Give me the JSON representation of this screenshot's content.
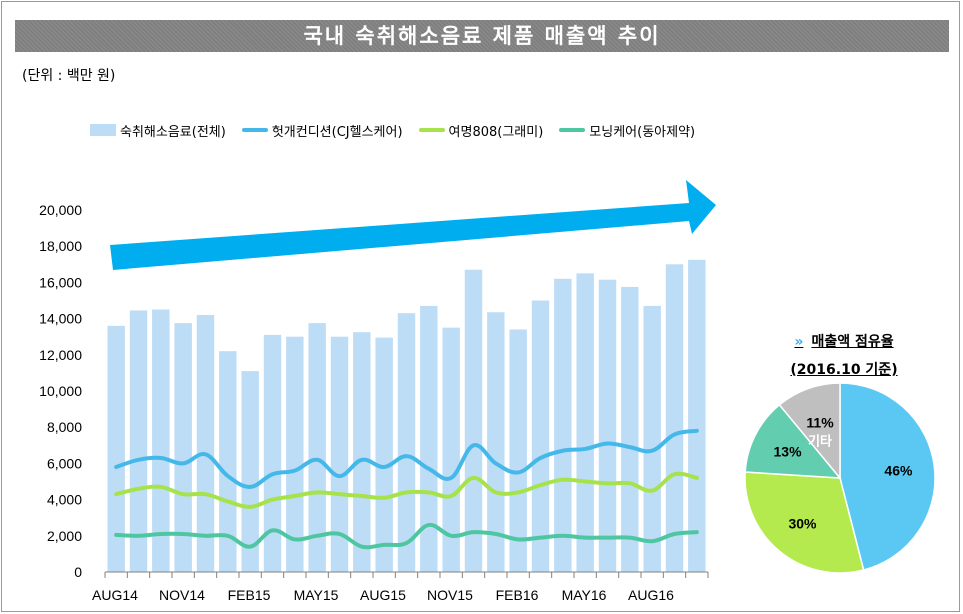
{
  "title": "국내 숙취해소음료 제품 매출액 추이",
  "unit": "(단위 : 백만 원)",
  "legend": [
    {
      "label": "숙취해소음료(전체)",
      "color": "#bddcf5",
      "kind": "bar"
    },
    {
      "label": "헛개컨디션(CJ헬스케어)",
      "color": "#45b8ea",
      "kind": "line"
    },
    {
      "label": "여명808(그래미)",
      "color": "#a6e24a",
      "kind": "line"
    },
    {
      "label": "모닝케어(동아제약)",
      "color": "#4fc6a2",
      "kind": "line"
    }
  ],
  "chart_data": [
    {
      "type": "bar",
      "x_tick_labels": [
        "AUG14",
        "NOV14",
        "FEB15",
        "MAY15",
        "AUG15",
        "NOV15",
        "FEB16",
        "MAY16",
        "AUG16"
      ],
      "y_tick_labels": [
        "0",
        "2,000",
        "4,000",
        "6,000",
        "8,000",
        "10,000",
        "12,000",
        "14,000",
        "16,000",
        "18,000",
        "20,000"
      ],
      "ylim": [
        0,
        20000
      ],
      "n_periods": 27,
      "series": [
        {
          "name": "숙취해소음료(전체)",
          "type": "bar",
          "color": "#bddcf5",
          "values": [
            13600,
            14450,
            14500,
            13750,
            14200,
            12200,
            11100,
            13100,
            13000,
            13750,
            13000,
            13250,
            12950,
            14300,
            14700,
            13500,
            16700,
            14350,
            13400,
            15000,
            16200,
            16500,
            16150,
            15750,
            14700,
            17000,
            17250
          ]
        },
        {
          "name": "헛개컨디션(CJ헬스케어)",
          "type": "line",
          "color": "#45b8ea",
          "values": [
            5800,
            6200,
            6300,
            6000,
            6500,
            5300,
            4700,
            5400,
            5600,
            6200,
            5300,
            6200,
            5800,
            6400,
            5700,
            5200,
            7000,
            6000,
            5500,
            6300,
            6700,
            6800,
            7100,
            6900,
            6700,
            7600,
            7800
          ]
        },
        {
          "name": "여명808(그래미)",
          "type": "line",
          "color": "#a6e24a",
          "values": [
            4300,
            4600,
            4700,
            4300,
            4300,
            3900,
            3600,
            4000,
            4200,
            4400,
            4300,
            4200,
            4100,
            4400,
            4400,
            4200,
            5200,
            4400,
            4400,
            4800,
            5100,
            5000,
            4900,
            4900,
            4500,
            5400,
            5200
          ]
        },
        {
          "name": "모닝케어(동아제약)",
          "type": "line",
          "color": "#4fc6a2",
          "values": [
            2050,
            2000,
            2100,
            2100,
            2000,
            2000,
            1400,
            2300,
            1800,
            2000,
            2100,
            1400,
            1500,
            1600,
            2600,
            2000,
            2200,
            2100,
            1800,
            1900,
            2000,
            1900,
            1900,
            1900,
            1700,
            2100,
            2200
          ]
        }
      ]
    },
    {
      "type": "pie",
      "title": "매출액 점유율",
      "subtitle": "(2016.10 기준)",
      "title_marker": "»",
      "slices": [
        {
          "label": "46%",
          "value": 46,
          "color": "#5bc8f3"
        },
        {
          "label": "30%",
          "value": 30,
          "color": "#b5ea4f"
        },
        {
          "label": "13%",
          "value": 13,
          "color": "#63cdb0"
        },
        {
          "label": "11%",
          "sublabel": "기타",
          "value": 11,
          "color": "#bfbfbf"
        }
      ]
    }
  ]
}
